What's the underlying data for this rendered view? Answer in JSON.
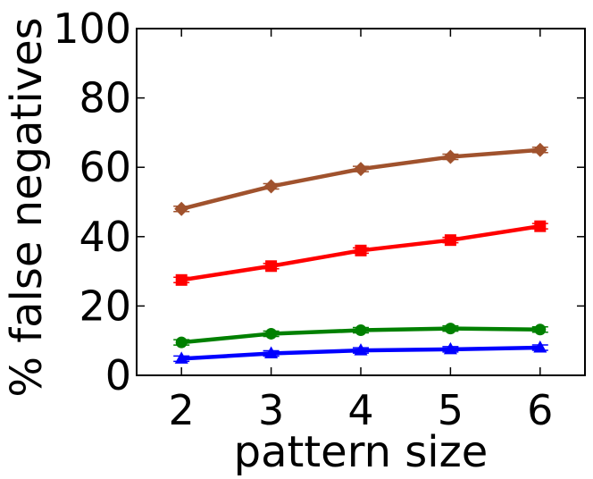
{
  "chart_data": {
    "type": "line",
    "xlabel": "pattern size",
    "ylabel": "% false negatives",
    "xlim": [
      1.5,
      6.5
    ],
    "ylim": [
      0,
      100
    ],
    "x": [
      2,
      3,
      4,
      5,
      6
    ],
    "xticks": [
      "2",
      "3",
      "4",
      "5",
      "6"
    ],
    "yticks": [
      "0",
      "20",
      "40",
      "60",
      "80",
      "100"
    ],
    "grid": false,
    "series": [
      {
        "color": "#a0522d",
        "marker": "diamond",
        "values": [
          48,
          54.5,
          59.5,
          63,
          65
        ]
      },
      {
        "color": "#ff0000",
        "marker": "square",
        "values": [
          27.5,
          31.5,
          36,
          39,
          43
        ]
      },
      {
        "color": "#008000",
        "marker": "circle",
        "values": [
          9.5,
          12,
          13,
          13.5,
          13.2
        ]
      },
      {
        "color": "#0000ff",
        "marker": "triangle",
        "values": [
          4.8,
          6.3,
          7.2,
          7.5,
          8
        ]
      }
    ]
  }
}
